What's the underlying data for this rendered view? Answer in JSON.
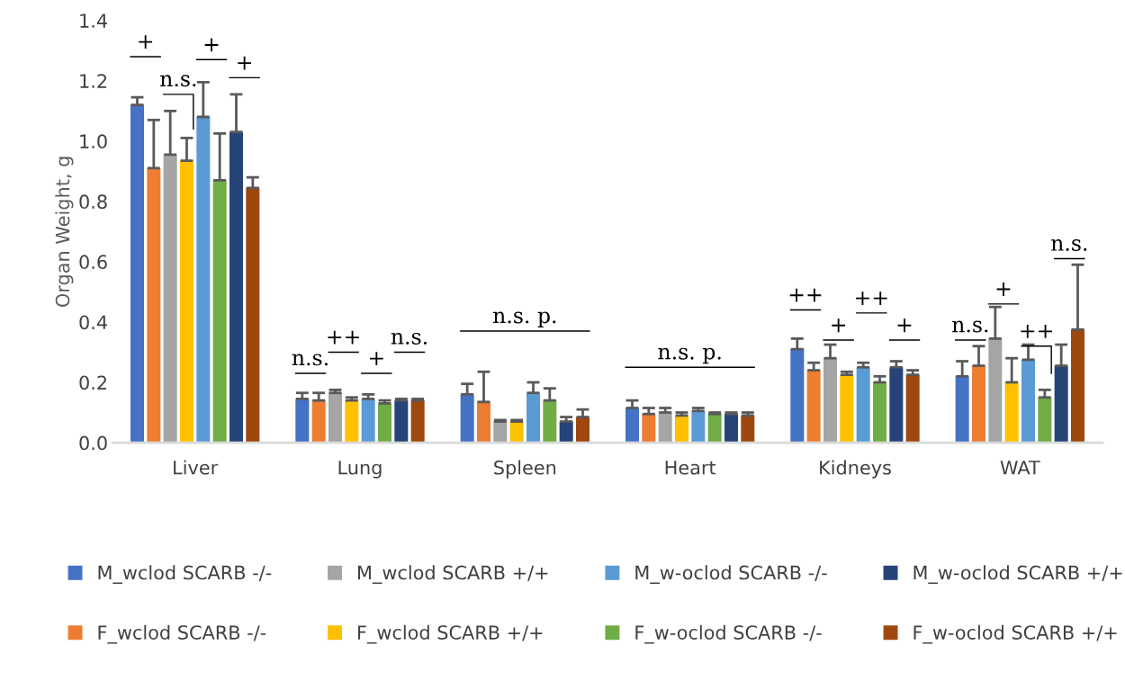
{
  "chart_data": {
    "type": "bar",
    "ylabel": "Organ Weight, g",
    "categories": [
      "Liver",
      "Lung",
      "Spleen",
      "Heart",
      "Kidneys",
      "WAT"
    ],
    "ylim": [
      0,
      1.4
    ],
    "yticks": [
      {
        "value": 0,
        "label": "0.0"
      },
      {
        "value": 0.2,
        "label": "0.2"
      },
      {
        "value": 0.4,
        "label": "0.4"
      },
      {
        "value": 0.6,
        "label": "0.6"
      },
      {
        "value": 0.8,
        "label": "0.8"
      },
      {
        "value": 1.0,
        "label": "1.0"
      },
      {
        "value": 1.2,
        "label": "1.2"
      },
      {
        "value": 1.4,
        "label": "1.4"
      }
    ],
    "legend": "bottom",
    "series": [
      {
        "name": "M_wclod SCARB -/-",
        "color": "#4472c4",
        "values": [
          1.12,
          0.145,
          0.16,
          0.115,
          0.31,
          0.22
        ],
        "errors": [
          [
            1.12,
            1.145
          ],
          [
            0.145,
            0.165
          ],
          [
            0.16,
            0.195
          ],
          [
            0.115,
            0.14
          ],
          [
            0.31,
            0.345
          ],
          [
            0.22,
            0.27
          ]
        ]
      },
      {
        "name": "F_wclod SCARB -/-",
        "color": "#ed7d31",
        "values": [
          0.91,
          0.14,
          0.135,
          0.095,
          0.24,
          0.255
        ],
        "errors": [
          [
            0.91,
            1.07
          ],
          [
            0.14,
            0.165
          ],
          [
            0.135,
            0.235
          ],
          [
            0.095,
            0.115
          ],
          [
            0.24,
            0.265
          ],
          [
            0.255,
            0.32
          ]
        ]
      },
      {
        "name": "M_wclod SCARB +/+",
        "color": "#a5a5a5",
        "values": [
          0.955,
          0.165,
          0.07,
          0.1,
          0.28,
          0.345
        ],
        "errors": [
          [
            0.955,
            1.1
          ],
          [
            0.165,
            0.175
          ],
          [
            0.07,
            0.075
          ],
          [
            0.1,
            0.115
          ],
          [
            0.28,
            0.325
          ],
          [
            0.345,
            0.45
          ]
        ]
      },
      {
        "name": "F_wclod SCARB +/+",
        "color": "#ffc000",
        "values": [
          0.935,
          0.14,
          0.07,
          0.09,
          0.225,
          0.2
        ],
        "errors": [
          [
            0.935,
            1.01
          ],
          [
            0.14,
            0.15
          ],
          [
            0.07,
            0.075
          ],
          [
            0.09,
            0.1
          ],
          [
            0.225,
            0.235
          ],
          [
            0.2,
            0.28
          ]
        ]
      },
      {
        "name": "M_w-oclod SCARB -/-",
        "color": "#5b9bd5",
        "values": [
          1.08,
          0.145,
          0.165,
          0.105,
          0.25,
          0.275
        ],
        "errors": [
          [
            1.08,
            1.195
          ],
          [
            0.145,
            0.16
          ],
          [
            0.165,
            0.2
          ],
          [
            0.105,
            0.115
          ],
          [
            0.25,
            0.265
          ],
          [
            0.275,
            0.325
          ]
        ]
      },
      {
        "name": "F_w-oclod SCARB -/-",
        "color": "#70ad47",
        "values": [
          0.87,
          0.13,
          0.14,
          0.095,
          0.2,
          0.15
        ],
        "errors": [
          [
            0.87,
            1.025
          ],
          [
            0.13,
            0.14
          ],
          [
            0.14,
            0.18
          ],
          [
            0.095,
            0.1
          ],
          [
            0.2,
            0.22
          ],
          [
            0.15,
            0.175
          ]
        ]
      },
      {
        "name": "M_w-oclod SCARB +/+",
        "color": "#264478",
        "values": [
          1.03,
          0.14,
          0.07,
          0.095,
          0.25,
          0.255
        ],
        "errors": [
          [
            1.03,
            1.155
          ],
          [
            0.14,
            0.145
          ],
          [
            0.07,
            0.085
          ],
          [
            0.095,
            0.1
          ],
          [
            0.25,
            0.27
          ],
          [
            0.255,
            0.325
          ]
        ]
      },
      {
        "name": "F_w-oclod SCARB +/+",
        "color": "#9e480e",
        "values": [
          0.845,
          0.14,
          0.085,
          0.09,
          0.225,
          0.375
        ],
        "errors": [
          [
            0.845,
            0.88
          ],
          [
            0.14,
            0.145
          ],
          [
            0.085,
            0.11
          ],
          [
            0.09,
            0.1
          ],
          [
            0.225,
            0.24
          ],
          [
            0.375,
            0.59
          ]
        ]
      }
    ],
    "annotations": [
      "+",
      "n.s.",
      "+",
      "+",
      "n.s.",
      "++",
      "+",
      "n.s.",
      "n.s. p.",
      "n.s. p.",
      "++",
      "+",
      "++",
      "+",
      "n.s.",
      "+",
      "++",
      "n.s."
    ]
  }
}
